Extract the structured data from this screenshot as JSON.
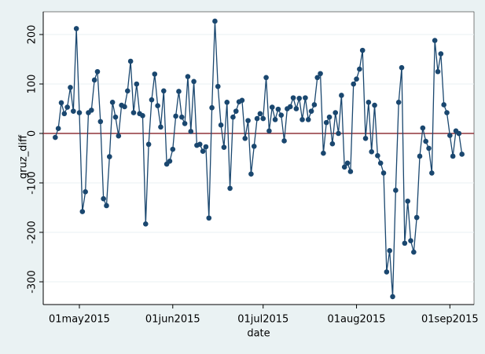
{
  "chart_data": {
    "type": "line",
    "xlabel": "date",
    "ylabel": "gruz_diff",
    "x": [
      "23apr2015",
      "24apr2015",
      "25apr2015",
      "26apr2015",
      "27apr2015",
      "28apr2015",
      "29apr2015",
      "30apr2015",
      "01may2015",
      "02may2015",
      "03may2015",
      "04may2015",
      "05may2015",
      "06may2015",
      "07may2015",
      "08may2015",
      "09may2015",
      "10may2015",
      "11may2015",
      "12may2015",
      "13may2015",
      "14may2015",
      "15may2015",
      "16may2015",
      "17may2015",
      "18may2015",
      "19may2015",
      "20may2015",
      "21may2015",
      "22may2015",
      "23may2015",
      "24may2015",
      "25may2015",
      "26may2015",
      "27may2015",
      "28may2015",
      "29may2015",
      "30may2015",
      "31may2015",
      "01jun2015",
      "02jun2015",
      "03jun2015",
      "04jun2015",
      "05jun2015",
      "06jun2015",
      "07jun2015",
      "08jun2015",
      "09jun2015",
      "10jun2015",
      "11jun2015",
      "12jun2015",
      "13jun2015",
      "14jun2015",
      "15jun2015",
      "16jun2015",
      "17jun2015",
      "18jun2015",
      "19jun2015",
      "20jun2015",
      "21jun2015",
      "22jun2015",
      "23jun2015",
      "24jun2015",
      "25jun2015",
      "26jun2015",
      "27jun2015",
      "28jun2015",
      "29jun2015",
      "30jun2015",
      "01jul2015",
      "02jul2015",
      "03jul2015",
      "04jul2015",
      "05jul2015",
      "06jul2015",
      "07jul2015",
      "08jul2015",
      "09jul2015",
      "10jul2015",
      "11jul2015",
      "12jul2015",
      "13jul2015",
      "14jul2015",
      "15jul2015",
      "16jul2015",
      "17jul2015",
      "18jul2015",
      "19jul2015",
      "20jul2015",
      "21jul2015",
      "22jul2015",
      "23jul2015",
      "24jul2015",
      "25jul2015",
      "26jul2015",
      "27jul2015",
      "28jul2015",
      "29jul2015",
      "30jul2015",
      "31jul2015",
      "01aug2015",
      "02aug2015",
      "03aug2015",
      "04aug2015",
      "05aug2015",
      "06aug2015",
      "07aug2015",
      "08aug2015",
      "09aug2015",
      "10aug2015",
      "11aug2015",
      "12aug2015",
      "13aug2015",
      "14aug2015",
      "15aug2015",
      "16aug2015",
      "17aug2015",
      "18aug2015",
      "19aug2015",
      "20aug2015",
      "21aug2015",
      "22aug2015",
      "23aug2015",
      "24aug2015",
      "25aug2015",
      "26aug2015",
      "27aug2015",
      "28aug2015",
      "29aug2015",
      "30aug2015",
      "31aug2015",
      "01sep2015",
      "02sep2015",
      "03sep2015",
      "04sep2015",
      "05sep2015"
    ],
    "series": [
      {
        "name": "gruz_diff",
        "color": "#1a476f",
        "values": [
          -8,
          10,
          62,
          40,
          53,
          93,
          45,
          212,
          42,
          -158,
          -118,
          42,
          47,
          108,
          125,
          24,
          -132,
          -146,
          -47,
          63,
          33,
          -5,
          57,
          54,
          86,
          146,
          42,
          100,
          40,
          36,
          -183,
          -22,
          68,
          120,
          56,
          13,
          86,
          -62,
          -56,
          -32,
          35,
          85,
          33,
          20,
          115,
          4,
          105,
          -24,
          -22,
          -36,
          -27,
          -171,
          52,
          227,
          95,
          17,
          -28,
          63,
          -111,
          33,
          45,
          64,
          67,
          -10,
          26,
          -82,
          -26,
          30,
          40,
          30,
          113,
          5,
          53,
          28,
          49,
          37,
          -15,
          50,
          54,
          72,
          50,
          71,
          28,
          72,
          28,
          45,
          58,
          113,
          121,
          -40,
          22,
          33,
          -21,
          42,
          0,
          77,
          -68,
          -60,
          -77,
          100,
          110,
          130,
          168,
          -10,
          63,
          -37,
          57,
          -45,
          -60,
          -80,
          -280,
          -237,
          -330,
          -115,
          63,
          133,
          -222,
          -137,
          -217,
          -240,
          -170,
          -46,
          11,
          -16,
          -30,
          -80,
          188,
          125,
          161,
          58,
          42,
          -4,
          -46,
          5,
          0,
          -42
        ]
      }
    ],
    "xlim": [
      "19apr2015",
      "09sep2015"
    ],
    "xticks": [
      "01may2015",
      "01jun2015",
      "01jul2015",
      "01aug2015",
      "01sep2015"
    ],
    "ylim": [
      -346,
      246
    ],
    "yticks": [
      -300,
      -200,
      -100,
      0,
      100,
      200
    ],
    "grid": true,
    "reference_line": 0,
    "reference_color": "#90353b"
  }
}
